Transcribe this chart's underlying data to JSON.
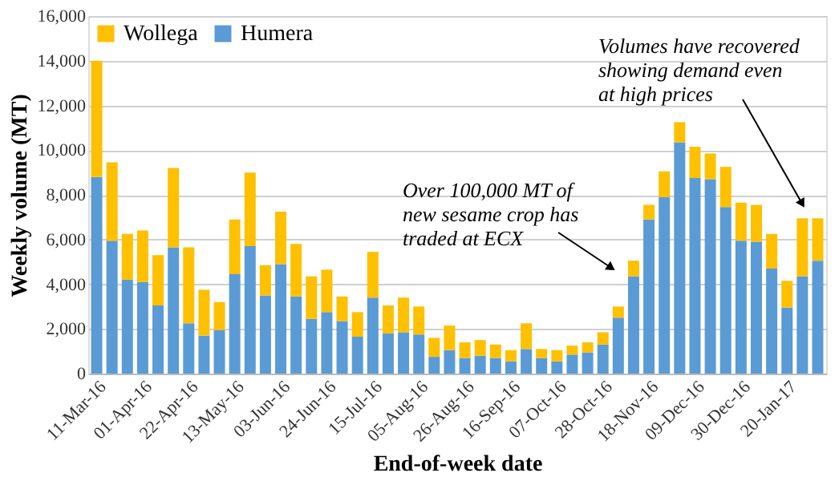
{
  "chart_data": {
    "type": "bar",
    "stacked": true,
    "xlabel": "End-of-week date",
    "ylabel": "Weekly volume (MT)",
    "categories": [
      "11-Mar-16",
      null,
      null,
      "01-Apr-16",
      null,
      null,
      "22-Apr-16",
      null,
      null,
      "13-May-16",
      null,
      null,
      "03-Jun-16",
      null,
      null,
      "24-Jun-16",
      null,
      null,
      "15-Jul-16",
      null,
      null,
      "05-Aug-16",
      null,
      null,
      "26-Aug-16",
      null,
      null,
      "16-Sep-16",
      null,
      null,
      "07-Oct-16",
      null,
      null,
      "28-Oct-16",
      null,
      null,
      "18-Nov-16",
      null,
      null,
      "09-Dec-16",
      null,
      null,
      "30-Dec-16",
      null,
      null,
      "20-Jan-17",
      null,
      null
    ],
    "series": [
      {
        "name": "Humera",
        "color": "#5b9bd5",
        "values": [
          8800,
          5950,
          4200,
          4100,
          3050,
          5650,
          2250,
          1700,
          1950,
          4450,
          5700,
          3500,
          4900,
          3450,
          2450,
          2750,
          2350,
          1650,
          3400,
          1800,
          1850,
          1750,
          750,
          1050,
          700,
          800,
          700,
          550,
          1100,
          700,
          550,
          850,
          950,
          1300,
          2500,
          4350,
          6900,
          7900,
          10350,
          8750,
          8700,
          7450,
          5950,
          5900,
          4700,
          2950,
          4350,
          5050
        ]
      },
      {
        "name": "Wollega",
        "color": "#ffc000",
        "values": [
          5200,
          3500,
          2050,
          2300,
          2250,
          3550,
          3400,
          2050,
          1250,
          2450,
          3300,
          1350,
          2350,
          2350,
          1900,
          1900,
          1100,
          1100,
          2050,
          1250,
          1550,
          1250,
          850,
          1100,
          700,
          700,
          600,
          500,
          1150,
          400,
          500,
          400,
          450,
          550,
          500,
          700,
          650,
          1150,
          900,
          1400,
          1150,
          1800,
          1700,
          1650,
          1550,
          1200,
          2600,
          1900
        ]
      }
    ],
    "ylim": [
      0,
      16000
    ],
    "yticks": [
      0,
      {
        "value": 2000,
        "label": "2,000"
      },
      {
        "value": 4000,
        "label": "4,000"
      },
      {
        "value": 6000,
        "label": "6,000"
      },
      {
        "value": 8000,
        "label": "8,000"
      },
      {
        "value": 10000,
        "label": "10,000"
      },
      {
        "value": 12000,
        "label": "12,000"
      },
      {
        "value": 14000,
        "label": "14,000"
      },
      {
        "value": 16000,
        "label": "16,000"
      }
    ],
    "grid": "y",
    "legend": "top left",
    "annotations": [
      "Over 100,000 MT of\nnew sesame crop has\ntraded at ECX",
      "Volumes have recovered\nshowing demand even\nat high prices"
    ]
  }
}
